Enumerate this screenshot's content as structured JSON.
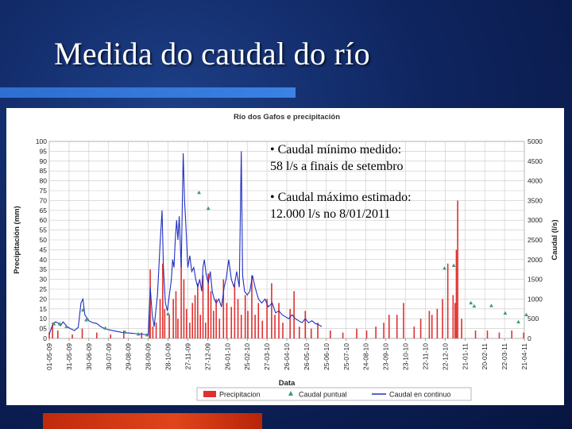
{
  "slide": {
    "title": "Medida do caudal do río"
  },
  "notes": [
    "• Caudal  mínimo  medido:\n58 l/s a finais de setembro",
    "• Caudal máximo estimado:\n12.000 l/s no 8/01/2011"
  ],
  "colors": {
    "background": "#0f2560",
    "title_rule": "#3a82e4",
    "bottom_bar": "#d9401a",
    "precipitation": "#e03030",
    "spot_flow": "#3a9a7a",
    "continuous_flow": "#2030c0"
  },
  "chart_data": {
    "type": "bar",
    "title": "Río dos Gafos e precipitación",
    "xlabel": "Data",
    "ylabel_left": "Precipitación (mm)",
    "ylabel_right": "Caudal (l/s)",
    "y_left_lim": [
      0,
      100
    ],
    "y_right_lim": [
      0,
      5000
    ],
    "y_left_ticks": [
      0,
      5,
      10,
      15,
      20,
      25,
      30,
      35,
      40,
      45,
      50,
      55,
      60,
      65,
      70,
      75,
      80,
      85,
      90,
      95,
      100
    ],
    "y_left_tick_labels": [
      "0",
      "05",
      "10",
      "15",
      "20",
      "25",
      "30",
      "35",
      "40",
      "45",
      "50",
      "55",
      "60",
      "65",
      "70",
      "75",
      "80",
      "85",
      "90",
      "95",
      "100"
    ],
    "y_right_ticks": [
      0,
      500,
      1000,
      1500,
      2000,
      2500,
      3000,
      3500,
      4000,
      4500,
      5000
    ],
    "x_tick_labels": [
      "01-05-09",
      "31-05-09",
      "30-06-09",
      "30-07-09",
      "29-08-09",
      "28-09-09",
      "28-10-09",
      "27-11-09",
      "27-12-09",
      "26-01-10",
      "25-02-10",
      "27-03-10",
      "26-04-10",
      "26-05-10",
      "25-06-10",
      "25-07-10",
      "24-08-10",
      "23-09-10",
      "23-10-10",
      "22-11-10",
      "22-12-10",
      "21-01-11",
      "20-02-11",
      "22-03-11",
      "21-04-11"
    ],
    "grid": true,
    "legend_position": "bottom",
    "legend": [
      "Precipitacion",
      "Caudal puntual",
      "Caudal en continuo"
    ],
    "series": [
      {
        "name": "Precipitacion",
        "type": "bar",
        "axis": "left",
        "points": [
          [
            "01-05-09",
            3
          ],
          [
            "06-05-09",
            8
          ],
          [
            "14-05-09",
            4
          ],
          [
            "05-06-09",
            2
          ],
          [
            "20-06-09",
            5
          ],
          [
            "12-07-09",
            3
          ],
          [
            "02-08-09",
            2
          ],
          [
            "22-08-09",
            4
          ],
          [
            "18-09-09",
            3
          ],
          [
            "30-09-09",
            12
          ],
          [
            "01-10-09",
            35
          ],
          [
            "05-10-09",
            6
          ],
          [
            "10-10-09",
            8
          ],
          [
            "16-10-09",
            20
          ],
          [
            "20-10-09",
            38
          ],
          [
            "23-10-09",
            15
          ],
          [
            "30-10-09",
            12
          ],
          [
            "05-11-09",
            20
          ],
          [
            "09-11-09",
            24
          ],
          [
            "12-11-09",
            10
          ],
          [
            "17-11-09",
            40
          ],
          [
            "21-11-09",
            30
          ],
          [
            "25-11-09",
            15
          ],
          [
            "30-11-09",
            8
          ],
          [
            "04-12-09",
            18
          ],
          [
            "08-12-09",
            22
          ],
          [
            "12-12-09",
            28
          ],
          [
            "16-12-09",
            12
          ],
          [
            "20-12-09",
            32
          ],
          [
            "24-12-09",
            8
          ],
          [
            "28-12-09",
            33
          ],
          [
            "01-01-10",
            24
          ],
          [
            "05-01-10",
            14
          ],
          [
            "09-01-10",
            20
          ],
          [
            "14-01-10",
            10
          ],
          [
            "20-01-10",
            30
          ],
          [
            "25-01-10",
            18
          ],
          [
            "01-02-10",
            16
          ],
          [
            "06-02-10",
            28
          ],
          [
            "11-02-10",
            20
          ],
          [
            "16-02-10",
            12
          ],
          [
            "22-02-10",
            22
          ],
          [
            "26-02-10",
            14
          ],
          [
            "04-03-10",
            32
          ],
          [
            "09-03-10",
            12
          ],
          [
            "14-03-10",
            18
          ],
          [
            "20-03-10",
            9
          ],
          [
            "27-03-10",
            20
          ],
          [
            "03-04-10",
            28
          ],
          [
            "08-04-10",
            12
          ],
          [
            "14-04-10",
            18
          ],
          [
            "20-04-10",
            8
          ],
          [
            "01-05-10",
            15
          ],
          [
            "07-05-10",
            24
          ],
          [
            "15-05-10",
            6
          ],
          [
            "24-05-10",
            14
          ],
          [
            "02-06-10",
            5
          ],
          [
            "12-06-10",
            8
          ],
          [
            "01-07-10",
            4
          ],
          [
            "20-07-10",
            3
          ],
          [
            "10-08-10",
            5
          ],
          [
            "25-08-10",
            4
          ],
          [
            "08-09-10",
            6
          ],
          [
            "20-09-10",
            8
          ],
          [
            "28-09-10",
            12
          ],
          [
            "10-10-10",
            12
          ],
          [
            "20-10-10",
            18
          ],
          [
            "05-11-10",
            6
          ],
          [
            "15-11-10",
            10
          ],
          [
            "28-11-10",
            14
          ],
          [
            "02-12-10",
            12
          ],
          [
            "10-12-10",
            15
          ],
          [
            "18-12-10",
            20
          ],
          [
            "26-12-10",
            38
          ],
          [
            "03-01-11",
            22
          ],
          [
            "06-01-11",
            18
          ],
          [
            "08-01-11",
            45
          ],
          [
            "10-01-11",
            70
          ],
          [
            "16-01-11",
            10
          ],
          [
            "06-02-11",
            4
          ],
          [
            "24-02-11",
            4
          ],
          [
            "14-03-11",
            3
          ],
          [
            "02-04-11",
            4
          ],
          [
            "20-04-11",
            3
          ]
        ]
      },
      {
        "name": "Caudal puntual",
        "type": "scatter",
        "axis": "right",
        "points": [
          [
            "08-05-09",
            370
          ],
          [
            "17-05-09",
            370
          ],
          [
            "27-05-09",
            300
          ],
          [
            "21-06-09",
            720
          ],
          [
            "26-06-09",
            470
          ],
          [
            "25-07-09",
            260
          ],
          [
            "24-08-09",
            160
          ],
          [
            "13-09-09",
            110
          ],
          [
            "26-09-09",
            90
          ],
          [
            "28-10-09",
            620
          ],
          [
            "14-12-09",
            3700
          ],
          [
            "28-12-09",
            3300
          ],
          [
            "21-12-10",
            1780
          ],
          [
            "04-01-11",
            1850
          ],
          [
            "30-01-11",
            900
          ],
          [
            "04-02-11",
            820
          ],
          [
            "02-03-11",
            830
          ],
          [
            "23-03-11",
            640
          ],
          [
            "12-04-11",
            420
          ],
          [
            "24-04-11",
            600
          ]
        ]
      },
      {
        "name": "Caudal en continuo",
        "type": "line",
        "axis": "right",
        "points": [
          [
            "01-05-09",
            100
          ],
          [
            "05-05-09",
            300
          ],
          [
            "10-05-09",
            420
          ],
          [
            "14-05-09",
            400
          ],
          [
            "18-05-09",
            320
          ],
          [
            "22-05-09",
            420
          ],
          [
            "28-05-09",
            300
          ],
          [
            "02-06-09",
            250
          ],
          [
            "08-06-09",
            200
          ],
          [
            "14-06-09",
            280
          ],
          [
            "18-06-09",
            900
          ],
          [
            "21-06-09",
            1000
          ],
          [
            "24-06-09",
            600
          ],
          [
            "30-06-09",
            450
          ],
          [
            "06-07-09",
            400
          ],
          [
            "12-07-09",
            380
          ],
          [
            "18-07-09",
            300
          ],
          [
            "24-07-09",
            250
          ],
          [
            "30-07-09",
            220
          ],
          [
            "05-08-09",
            200
          ],
          [
            "11-08-09",
            180
          ],
          [
            "17-08-09",
            160
          ],
          [
            "23-08-09",
            140
          ],
          [
            "29-08-09",
            140
          ],
          [
            "04-09-09",
            130
          ],
          [
            "10-09-09",
            120
          ],
          [
            "16-09-09",
            110
          ],
          [
            "22-09-09",
            100
          ],
          [
            "28-09-09",
            90
          ],
          [
            "01-10-09",
            1300
          ],
          [
            "04-10-09",
            600
          ],
          [
            "07-10-09",
            300
          ],
          [
            "12-10-09",
            1100
          ],
          [
            "16-10-09",
            2400
          ],
          [
            "19-10-09",
            3250
          ],
          [
            "21-10-09",
            1800
          ],
          [
            "24-10-09",
            900
          ],
          [
            "27-10-09",
            700
          ],
          [
            "30-10-09",
            1100
          ],
          [
            "02-11-09",
            1500
          ],
          [
            "04-11-09",
            2000
          ],
          [
            "06-11-09",
            1800
          ],
          [
            "08-11-09",
            2500
          ],
          [
            "10-11-09",
            3000
          ],
          [
            "12-11-09",
            2500
          ],
          [
            "14-11-09",
            3100
          ],
          [
            "17-11-09",
            1800
          ],
          [
            "20-11-09",
            4700
          ],
          [
            "22-11-09",
            3500
          ],
          [
            "24-11-09",
            2900
          ],
          [
            "27-11-09",
            1800
          ],
          [
            "30-11-09",
            2100
          ],
          [
            "03-12-09",
            1700
          ],
          [
            "06-12-09",
            1800
          ],
          [
            "09-12-09",
            1500
          ],
          [
            "12-12-09",
            1300
          ],
          [
            "15-12-09",
            1500
          ],
          [
            "18-12-09",
            1200
          ],
          [
            "20-12-09",
            1800
          ],
          [
            "22-12-09",
            2000
          ],
          [
            "25-12-09",
            1600
          ],
          [
            "28-12-09",
            1400
          ],
          [
            "31-12-09",
            1700
          ],
          [
            "03-01-10",
            1200
          ],
          [
            "06-01-10",
            1000
          ],
          [
            "09-01-10",
            900
          ],
          [
            "13-01-10",
            1000
          ],
          [
            "17-01-10",
            800
          ],
          [
            "21-01-10",
            1300
          ],
          [
            "24-01-10",
            1500
          ],
          [
            "28-01-10",
            2000
          ],
          [
            "01-02-10",
            1500
          ],
          [
            "05-02-10",
            1300
          ],
          [
            "09-02-10",
            1700
          ],
          [
            "13-02-10",
            1300
          ],
          [
            "16-02-10",
            4750
          ],
          [
            "18-02-10",
            1600
          ],
          [
            "21-02-10",
            1200
          ],
          [
            "25-02-10",
            1100
          ],
          [
            "01-03-10",
            1200
          ],
          [
            "05-03-10",
            1600
          ],
          [
            "09-03-10",
            1300
          ],
          [
            "14-03-10",
            1000
          ],
          [
            "19-03-10",
            900
          ],
          [
            "24-03-10",
            1000
          ],
          [
            "29-03-10",
            800
          ],
          [
            "04-04-10",
            900
          ],
          [
            "09-04-10",
            650
          ],
          [
            "14-04-10",
            700
          ],
          [
            "19-04-10",
            600
          ],
          [
            "24-04-10",
            550
          ],
          [
            "29-04-10",
            500
          ],
          [
            "04-05-10",
            600
          ],
          [
            "09-05-10",
            500
          ],
          [
            "14-05-10",
            450
          ],
          [
            "19-05-10",
            400
          ],
          [
            "24-05-10",
            500
          ],
          [
            "29-05-10",
            400
          ],
          [
            "03-06-10",
            450
          ],
          [
            "08-06-10",
            380
          ],
          [
            "13-06-10",
            350
          ],
          [
            "18-06-10",
            300
          ]
        ]
      }
    ]
  }
}
